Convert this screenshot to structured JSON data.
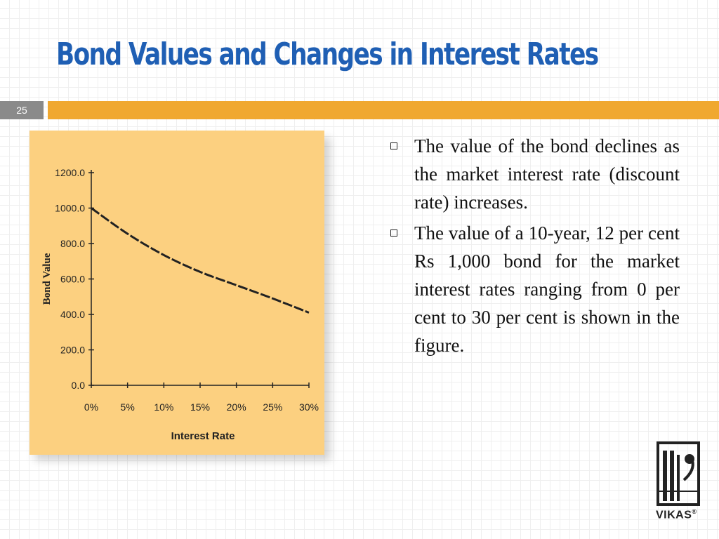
{
  "slide": {
    "title": "Bond Values and Changes in Interest Rates",
    "number": "25"
  },
  "colors": {
    "title": "#1f5fb4",
    "accent_bar": "#f0a830",
    "number_bar": "#8a8a8a",
    "chart_bg": "#fcd080"
  },
  "bullets": [
    "The value of the bond declines as the market interest rate (discount rate) increases.",
    "The value of a 10-year, 12 per cent Rs 1,000 bond for the market interest rates ranging from 0 per cent to 30 per cent is shown in the figure."
  ],
  "logo": {
    "text": "VIKAS",
    "mark": "®"
  },
  "chart_data": {
    "type": "line",
    "xlabel": "Interest Rate",
    "ylabel": "Bond Value",
    "x": [
      0,
      5,
      10,
      15,
      20,
      25,
      30
    ],
    "x_tick_labels": [
      "0%",
      "5%",
      "10%",
      "15%",
      "20%",
      "25%",
      "30%"
    ],
    "y_tick_values": [
      0,
      200,
      400,
      600,
      800,
      1000,
      1200
    ],
    "y_tick_labels": [
      "0.0",
      "200.0",
      "400.0",
      "600.0",
      "800.0",
      "1000.0",
      "1200.0"
    ],
    "series": [
      {
        "values": [
          1000,
          855,
          735,
          640,
          565,
          490,
          410
        ]
      }
    ],
    "xlim": [
      0,
      30
    ],
    "ylim": [
      0,
      1200
    ],
    "line_style": "dashed",
    "grid": false
  }
}
